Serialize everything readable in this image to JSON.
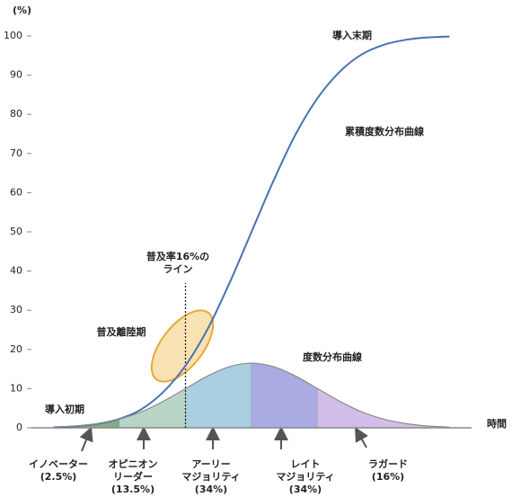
{
  "chart_data": {
    "type": "line",
    "ylabel": "(%)",
    "xlabel": "時間",
    "ylim": [
      0,
      100
    ],
    "yticks": [
      0,
      10,
      20,
      30,
      40,
      50,
      60,
      70,
      80,
      90,
      100
    ],
    "xlim": [
      0,
      100
    ],
    "x": [
      5,
      10,
      15,
      20,
      25,
      30,
      35,
      40,
      45,
      50,
      55,
      60,
      65,
      70,
      75,
      80,
      85,
      90,
      95
    ],
    "series": [
      {
        "name": "累積度数分布曲線",
        "color": "#4a72b0",
        "values": [
          0.13,
          0.38,
          0.99,
          2.28,
          4.75,
          9.18,
          15.87,
          25.14,
          36.94,
          50,
          63.06,
          74.86,
          84.13,
          90.82,
          95.25,
          97.72,
          99.01,
          99.62,
          99.87
        ]
      },
      {
        "name": "度数分布曲線",
        "color": "#8a8a8a",
        "values": [
          0.18,
          0.47,
          1.09,
          2.23,
          4.1,
          6.8,
          10.0,
          13.2,
          15.6,
          16.5,
          15.6,
          13.2,
          10.0,
          6.8,
          4.1,
          2.23,
          1.09,
          0.47,
          0.18
        ]
      }
    ],
    "segments": [
      {
        "from": 5,
        "to": 20,
        "color": "#86ad86"
      },
      {
        "from": 20,
        "to": 35,
        "color": "#b7d5c6"
      },
      {
        "from": 35,
        "to": 50,
        "color": "#a9cfe0"
      },
      {
        "from": 50,
        "to": 65,
        "color": "#a9abe2"
      },
      {
        "from": 65,
        "to": 95,
        "color": "#d3bde9"
      }
    ],
    "marker_x": 35,
    "marker_label": [
      "普及率16%の",
      "ライン"
    ],
    "phase_labels": [
      "導入初期",
      "普及離陸期",
      "導入末期"
    ],
    "adopter_labels": [
      [
        "イノベーター",
        "(2.5%)"
      ],
      [
        "オピニオン",
        "リーダー",
        "(13.5%)"
      ],
      [
        "アーリー",
        "マジョリティ",
        "(34%)"
      ],
      [
        "レイト",
        "マジョリティ",
        "(34%)"
      ],
      [
        "ラガード",
        "(16%)"
      ]
    ]
  }
}
